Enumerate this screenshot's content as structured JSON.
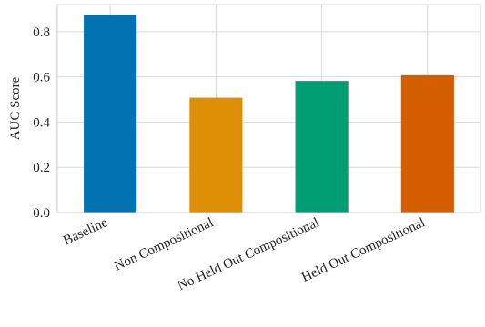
{
  "chart_data": {
    "type": "bar",
    "categories": [
      "Baseline",
      "Non Compositional",
      "No Held Out Compositional",
      "Held Out Compositional"
    ],
    "values": [
      0.875,
      0.508,
      0.582,
      0.607
    ],
    "colors": [
      "#0173b2",
      "#de8f05",
      "#029e73",
      "#d55e00"
    ],
    "title": "",
    "xlabel": "",
    "ylabel": "AUC Score",
    "ylim": [
      0,
      0.92
    ],
    "yticks": [
      0.0,
      0.2,
      0.4,
      0.6,
      0.8
    ],
    "ytick_labels": [
      "0.0",
      "0.2",
      "0.4",
      "0.6",
      "0.8"
    ],
    "grid": true,
    "legend": "none"
  }
}
